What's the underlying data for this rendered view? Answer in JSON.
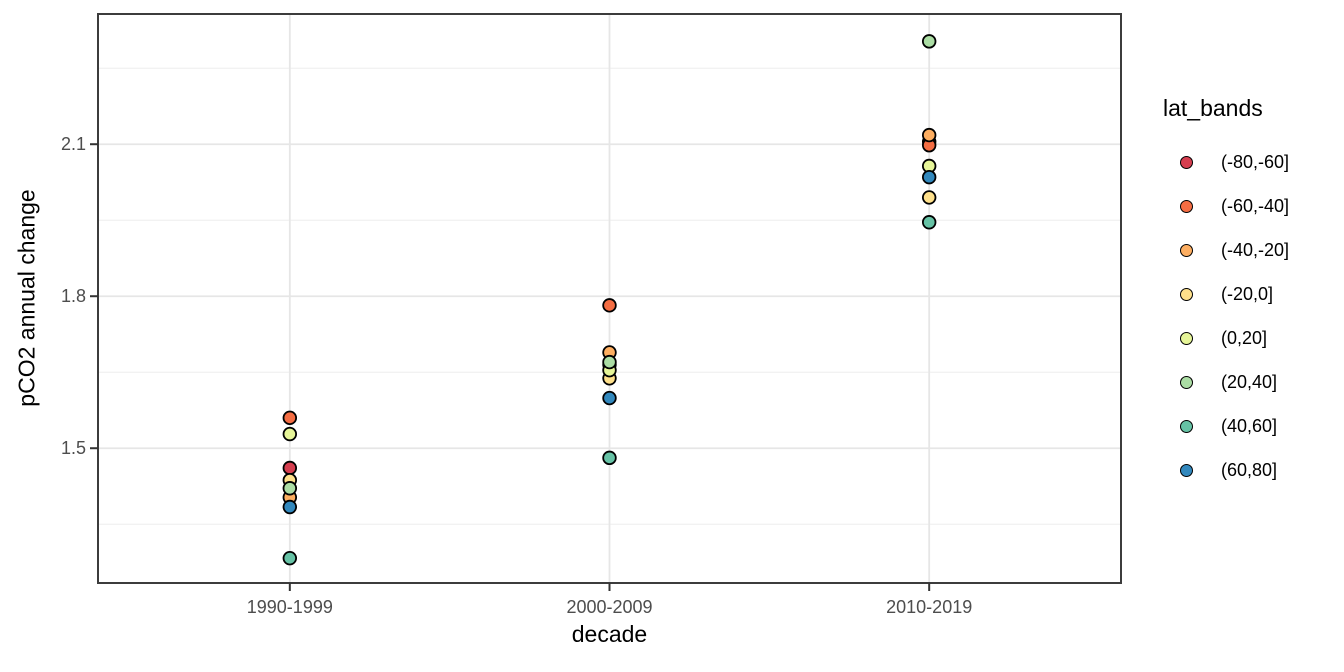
{
  "figure": {
    "background": "#ffffff",
    "panel": {
      "border_color": "#3c3c3c",
      "grid_major_color": "#e6e6e6",
      "grid_minor_color": "#f1f1f1",
      "tick_mark_color": "#333333",
      "tick_label_color": "#4d4d4d"
    }
  },
  "chart_data": {
    "type": "scatter",
    "title": "",
    "xlabel": "decade",
    "ylabel": "pCO2 annual change",
    "x_categories": [
      "1990-1999",
      "2000-2009",
      "2010-2019"
    ],
    "y_ticks": [
      1.5,
      1.8,
      2.1
    ],
    "y_tick_labels": [
      "1.5",
      "1.8",
      "2.1"
    ],
    "y_minor_ticks": [
      1.35,
      1.65,
      1.95,
      2.25
    ],
    "ylim": [
      1.234,
      2.357
    ],
    "grid": true,
    "legend_position": "right",
    "legend_title": "lat_bands",
    "point_outline": "#000000",
    "series": [
      {
        "name": "(-80,-60]",
        "color": "#d53e4f",
        "values": [
          1.461,
          1.665,
          2.105
        ]
      },
      {
        "name": "(-60,-40]",
        "color": "#f46d43",
        "values": [
          1.56,
          1.782,
          2.098
        ]
      },
      {
        "name": "(-40,-20]",
        "color": "#fdae61",
        "values": [
          1.403,
          1.689,
          2.118
        ]
      },
      {
        "name": "(-20,0]",
        "color": "#fee08b",
        "values": [
          1.437,
          1.638,
          1.995
        ]
      },
      {
        "name": "(0,20]",
        "color": "#e6f598",
        "values": [
          1.528,
          1.654,
          2.057
        ]
      },
      {
        "name": "(20,40]",
        "color": "#abdda4",
        "values": [
          1.421,
          1.67,
          2.303
        ]
      },
      {
        "name": "(40,60]",
        "color": "#66c2a5",
        "values": [
          1.283,
          1.481,
          1.946
        ]
      },
      {
        "name": "(60,80]",
        "color": "#3288bd",
        "values": [
          1.384,
          1.599,
          2.035
        ]
      }
    ]
  }
}
